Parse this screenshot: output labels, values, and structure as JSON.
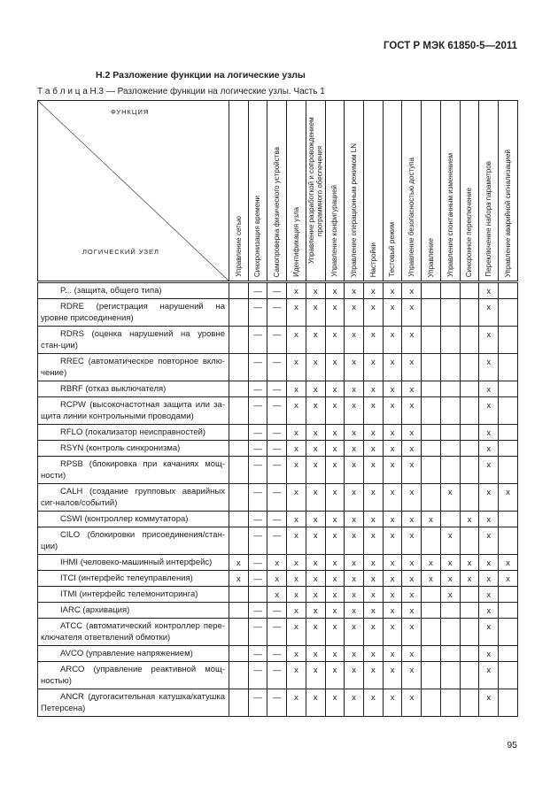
{
  "header": {
    "standard": "ГОСТ Р МЭК 61850-5—2011"
  },
  "section_title": "Н.2 Разложение функции на логические узлы",
  "table_caption": "Т а б л и ц а  Н.3 — Разложение функции на логические узлы. Часть 1",
  "table": {
    "corner_top": "ФУНКЦИЯ",
    "corner_bottom": "ЛОГИЧЕСКИЙ УЗЕЛ",
    "columns": [
      "Управление сетью",
      "Синхронизация времени",
      "Самопроверка физического устройства",
      "Идентификация узла",
      "Управление разработкой и сопровождением программного обеспечения",
      "Управление конфигурацией",
      "Управление операционным режимом LN",
      "Настройки",
      "Тестовый режим",
      "Управление безопасностью доступа",
      "Управление",
      "Управление спонтанным изменением",
      "Синхронное переключение",
      "Переключение набора параметров",
      "Управление аварийной сигнализацией"
    ],
    "rows": [
      {
        "label": "P... (защита, общего типа)",
        "cells": [
          "",
          "—",
          "—",
          "x",
          "x",
          "x",
          "x",
          "x",
          "x",
          "x",
          "",
          "",
          "",
          "x",
          ""
        ]
      },
      {
        "label": "RDRE (регистрация нарушений на уровне присоединения)",
        "cells": [
          "",
          "—",
          "—",
          "x",
          "x",
          "x",
          "x",
          "x",
          "x",
          "x",
          "",
          "",
          "",
          "x",
          ""
        ]
      },
      {
        "label": "RDRS (оценка нарушений на уровне стан-ции)",
        "cells": [
          "",
          "—",
          "—",
          "x",
          "x",
          "x",
          "x",
          "x",
          "x",
          "x",
          "",
          "",
          "",
          "x",
          ""
        ]
      },
      {
        "label": "RREC (автоматическое повторное вклю-чение)",
        "cells": [
          "",
          "—",
          "—",
          "x",
          "x",
          "x",
          "x",
          "x",
          "x",
          "x",
          "",
          "",
          "",
          "x",
          ""
        ]
      },
      {
        "label": "RBRF (отказ выключателя)",
        "cells": [
          "",
          "—",
          "—",
          "x",
          "x",
          "x",
          "x",
          "x",
          "x",
          "x",
          "",
          "",
          "",
          "x",
          ""
        ]
      },
      {
        "label": "RCPW (высокочастотная защита или за-щита линии контрольными проводами)",
        "cells": [
          "",
          "—",
          "—",
          "x",
          "x",
          "x",
          "x",
          "x",
          "x",
          "x",
          "",
          "",
          "",
          "x",
          ""
        ]
      },
      {
        "label": "RFLO (локализатор неисправностей)",
        "cells": [
          "",
          "—",
          "—",
          "x",
          "x",
          "x",
          "x",
          "x",
          "x",
          "x",
          "",
          "",
          "",
          "x",
          ""
        ]
      },
      {
        "label": "RSYN (контроль синхронизма)",
        "cells": [
          "",
          "—",
          "—",
          "x",
          "x",
          "x",
          "x",
          "x",
          "x",
          "x",
          "",
          "",
          "",
          "x",
          ""
        ]
      },
      {
        "label": "RPSB (блокировка при качаниях мощ-ности)",
        "cells": [
          "",
          "—",
          "—",
          "x",
          "x",
          "x",
          "x",
          "x",
          "x",
          "x",
          "",
          "",
          "",
          "x",
          ""
        ]
      },
      {
        "label": "CALH (создание групповых аварийных сиг-налов/событий)",
        "cells": [
          "",
          "—",
          "—",
          "x",
          "x",
          "x",
          "x",
          "x",
          "x",
          "x",
          "",
          "x",
          "",
          "x",
          "x"
        ]
      },
      {
        "label": "CSWI (контроллер коммутатора)",
        "cells": [
          "",
          "—",
          "—",
          "x",
          "x",
          "x",
          "x",
          "x",
          "x",
          "x",
          "x",
          "",
          "x",
          "x",
          ""
        ]
      },
      {
        "label": "CILO (блокировки присоединения/стан-ции)",
        "cells": [
          "",
          "—",
          "—",
          "x",
          "x",
          "x",
          "x",
          "x",
          "x",
          "x",
          "",
          "x",
          "",
          "x",
          ""
        ]
      },
      {
        "label": "IHMI (человеко-машинный интерфейс)",
        "cells": [
          "x",
          "—",
          "x",
          "x",
          "x",
          "x",
          "x",
          "x",
          "x",
          "x",
          "x",
          "x",
          "x",
          "x",
          "x"
        ]
      },
      {
        "label": "ITCI (интерфейс телеуправления)",
        "cells": [
          "x",
          "—",
          "x",
          "x",
          "x",
          "x",
          "x",
          "x",
          "x",
          "x",
          "x",
          "x",
          "x",
          "x",
          "x"
        ]
      },
      {
        "label": "ITMI (интерфейс телемониторинга)",
        "cells": [
          "",
          "",
          "x",
          "x",
          "x",
          "x",
          "x",
          "x",
          "x",
          "x",
          "",
          "x",
          "",
          "x",
          ""
        ]
      },
      {
        "label": "IARC (архивация)",
        "cells": [
          "",
          "—",
          "—",
          "x",
          "x",
          "x",
          "x",
          "x",
          "x",
          "x",
          "",
          "",
          "",
          "x",
          ""
        ]
      },
      {
        "label": "ATCC (автоматический контроллер пере-ключателя ответвлений обмотки)",
        "cells": [
          "",
          "—",
          "—",
          "x",
          "x",
          "x",
          "x",
          "x",
          "x",
          "x",
          "",
          "",
          "",
          "x",
          ""
        ]
      },
      {
        "label": "AVCO (управление напряжением)",
        "cells": [
          "",
          "—",
          "—",
          "x",
          "x",
          "x",
          "x",
          "x",
          "x",
          "x",
          "",
          "",
          "",
          "x",
          ""
        ]
      },
      {
        "label": "ARCO (управление реактивной мощ-ностью)",
        "cells": [
          "",
          "—",
          "—",
          "x",
          "x",
          "x",
          "x",
          "x",
          "x",
          "x",
          "",
          "",
          "",
          "x",
          ""
        ]
      },
      {
        "label": "ANCR (дугогасительная катушка/катушка Петерсена)",
        "cells": [
          "",
          "—",
          "—",
          "x",
          "x",
          "x",
          "x",
          "x",
          "x",
          "x",
          "",
          "",
          "",
          "x",
          ""
        ]
      }
    ]
  },
  "footer": {
    "page_number": "95"
  }
}
